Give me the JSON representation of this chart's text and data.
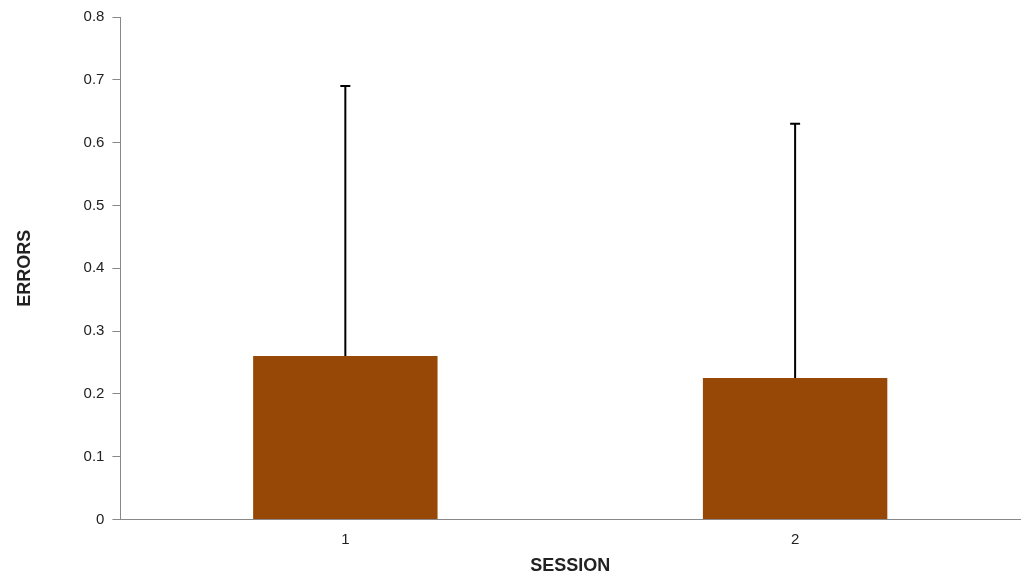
{
  "chart_data": {
    "type": "bar",
    "xlabel": "SESSION",
    "ylabel": "ERRORS",
    "categories": [
      "1",
      "2"
    ],
    "values": [
      0.26,
      0.225
    ],
    "errors": [
      [
        0.26,
        0.69
      ],
      [
        0.225,
        0.63
      ]
    ],
    "color": "#974706",
    "ylim": [
      0,
      0.8
    ],
    "yticks": [
      {
        "value": 0,
        "label": "0"
      },
      0.1,
      0.2,
      0.3,
      0.4,
      0.5,
      0.6,
      0.7,
      0.8
    ],
    "grid": false,
    "legend": false
  }
}
